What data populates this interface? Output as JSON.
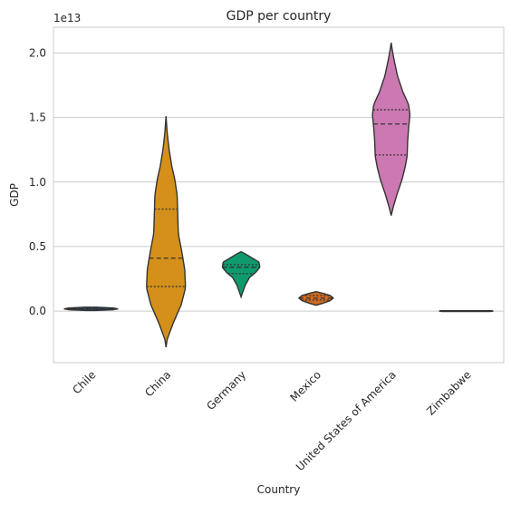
{
  "chart_data": {
    "type": "violin",
    "title": "GDP per country",
    "xlabel": "Country",
    "ylabel": "GDP",
    "y_offset_label": "1e13",
    "ylim": [
      -0.4,
      2.2
    ],
    "yticks": [
      "0.0",
      "0.5",
      "1.0",
      "1.5",
      "2.0"
    ],
    "ytick_values": [
      0.0,
      0.5,
      1.0,
      1.5,
      2.0
    ],
    "grid": true,
    "inner": "quartile",
    "categories": [
      "Chile",
      "China",
      "Germany",
      "Mexico",
      "United States of America",
      "Zimbabwe"
    ],
    "colors": [
      "#1f4e79",
      "#d4901a",
      "#0f9a6e",
      "#cf6a20",
      "#cc79b3",
      "#56b4e9"
    ],
    "violins": [
      {
        "name": "Chile",
        "min": 0.005,
        "max": 0.03,
        "q1": 0.012,
        "median": 0.017,
        "q3": 0.022,
        "profile": [
          [
            0.005,
            0.2
          ],
          [
            0.01,
            0.8
          ],
          [
            0.017,
            1.0
          ],
          [
            0.024,
            0.8
          ],
          [
            0.03,
            0.2
          ]
        ],
        "halfwidth": 0.72
      },
      {
        "name": "China",
        "min": -0.28,
        "max": 1.51,
        "q1": 0.19,
        "median": 0.41,
        "q3": 0.79,
        "profile": [
          [
            -0.28,
            0.0
          ],
          [
            -0.22,
            0.06
          ],
          [
            -0.1,
            0.35
          ],
          [
            0.05,
            0.78
          ],
          [
            0.18,
            1.0
          ],
          [
            0.32,
            0.96
          ],
          [
            0.45,
            0.82
          ],
          [
            0.6,
            0.63
          ],
          [
            0.75,
            0.6
          ],
          [
            0.9,
            0.57
          ],
          [
            1.02,
            0.45
          ],
          [
            1.12,
            0.3
          ],
          [
            1.25,
            0.16
          ],
          [
            1.38,
            0.06
          ],
          [
            1.51,
            0.0
          ]
        ],
        "halfwidth": 0.52
      },
      {
        "name": "Germany",
        "min": 0.11,
        "max": 0.46,
        "q1": 0.29,
        "median": 0.34,
        "q3": 0.36,
        "profile": [
          [
            0.11,
            0.0
          ],
          [
            0.14,
            0.07
          ],
          [
            0.2,
            0.22
          ],
          [
            0.26,
            0.45
          ],
          [
            0.3,
            0.78
          ],
          [
            0.34,
            1.0
          ],
          [
            0.38,
            0.95
          ],
          [
            0.41,
            0.6
          ],
          [
            0.44,
            0.26
          ],
          [
            0.46,
            0.0
          ]
        ],
        "halfwidth": 0.5
      },
      {
        "name": "Mexico",
        "min": 0.045,
        "max": 0.15,
        "q1": 0.085,
        "median": 0.1,
        "q3": 0.12,
        "profile": [
          [
            0.045,
            0.0
          ],
          [
            0.06,
            0.38
          ],
          [
            0.08,
            0.8
          ],
          [
            0.1,
            1.0
          ],
          [
            0.12,
            0.82
          ],
          [
            0.135,
            0.45
          ],
          [
            0.15,
            0.0
          ]
        ],
        "halfwidth": 0.46
      },
      {
        "name": "United States of America",
        "min": 0.74,
        "max": 2.08,
        "q1": 1.21,
        "median": 1.45,
        "q3": 1.56,
        "profile": [
          [
            0.74,
            0.0
          ],
          [
            0.8,
            0.1
          ],
          [
            0.9,
            0.3
          ],
          [
            1.02,
            0.58
          ],
          [
            1.12,
            0.75
          ],
          [
            1.2,
            0.85
          ],
          [
            1.32,
            0.88
          ],
          [
            1.42,
            0.93
          ],
          [
            1.52,
            1.0
          ],
          [
            1.6,
            0.93
          ],
          [
            1.7,
            0.62
          ],
          [
            1.82,
            0.34
          ],
          [
            1.95,
            0.15
          ],
          [
            2.03,
            0.05
          ],
          [
            2.08,
            0.0
          ]
        ],
        "halfwidth": 0.5
      },
      {
        "name": "Zimbabwe",
        "min": -0.003,
        "max": 0.003,
        "q1": -0.001,
        "median": 0.0,
        "q3": 0.001,
        "profile": [
          [
            -0.003,
            0.9
          ],
          [
            0.0,
            1.0
          ],
          [
            0.003,
            0.9
          ]
        ],
        "halfwidth": 0.72
      }
    ]
  }
}
